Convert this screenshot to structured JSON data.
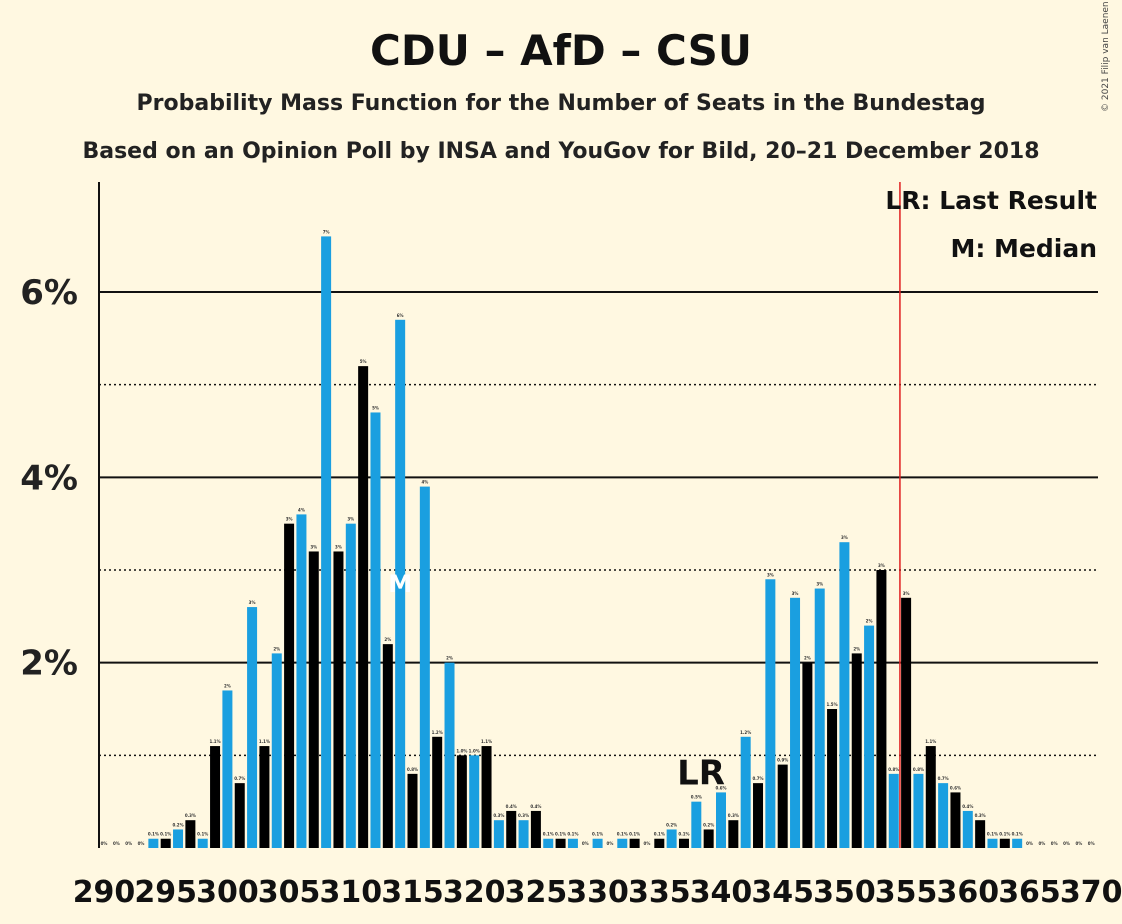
{
  "title": "CDU – AfD – CSU",
  "subtitle": "Probability Mass Function for the Number of Seats in the Bundestag",
  "caption": "Based on an Opinion Poll by INSA and YouGov for Bild, 20–21 December 2018",
  "copyright": "© 2021 Filip van Laenen",
  "legend": {
    "lr": "LR: Last Result",
    "median": "M: Median"
  },
  "markers": {
    "last_result_label": "LR",
    "median_label": "M"
  },
  "colors": {
    "background": "#fff8e1",
    "bar_blue": "#1a9fe0",
    "bar_black": "#000000",
    "majority_line": "#e0201f"
  },
  "chart_data": {
    "type": "bar",
    "x_start": 290,
    "x_end": 370,
    "y_unit": "%",
    "ylim": [
      0,
      7.1
    ],
    "yticks_major": [
      2,
      4,
      6
    ],
    "ytick_labels": [
      "2%",
      "4%",
      "6%"
    ],
    "yticks_dotted": [
      1,
      3,
      5
    ],
    "xtick_labels": [
      "290",
      "295",
      "300",
      "305",
      "310",
      "315",
      "320",
      "325",
      "330",
      "335",
      "340",
      "345",
      "350",
      "355",
      "360",
      "365",
      "370"
    ],
    "majority_line_at": 355,
    "last_result_seat": 340,
    "median_seat": 314,
    "values": [
      0.0,
      0.0,
      0.0,
      0.0,
      0.1,
      0.1,
      0.2,
      0.3,
      0.1,
      1.1,
      1.7,
      0.7,
      2.6,
      1.1,
      2.1,
      3.5,
      3.6,
      3.2,
      6.6,
      3.2,
      3.5,
      5.2,
      4.7,
      2.2,
      5.7,
      0.8,
      3.9,
      1.2,
      2.0,
      1.0,
      1.0,
      1.1,
      0.3,
      0.4,
      0.3,
      0.4,
      0.1,
      0.1,
      0.1,
      0.0,
      0.1,
      0.0,
      0.1,
      0.1,
      0.0,
      0.1,
      0.2,
      0.1,
      0.5,
      0.2,
      0.6,
      0.3,
      1.2,
      0.7,
      2.9,
      0.9,
      2.7,
      2.0,
      2.8,
      1.5,
      3.3,
      2.1,
      2.4,
      3.0,
      0.8,
      2.7,
      0.8,
      1.1,
      0.7,
      0.6,
      0.4,
      0.3,
      0.1,
      0.1,
      0.1,
      0.0,
      0.0,
      0.0,
      0.0,
      0.0,
      0.0
    ],
    "bar_labels": [
      "0%",
      "0%",
      "0%",
      "0%",
      "0.1%",
      "0.1%",
      "0.2%",
      "0.3%",
      "0.1%",
      "1.1%",
      "2%",
      "0.7%",
      "3%",
      "1.1%",
      "2%",
      "3%",
      "4%",
      "3%",
      "7%",
      "3%",
      "3%",
      "5%",
      "5%",
      "2%",
      "6%",
      "0.8%",
      "4%",
      "1.2%",
      "2%",
      "1.0%",
      "1.0%",
      "1.1%",
      "0.3%",
      "0.4%",
      "0.3%",
      "0.4%",
      "0.1%",
      "0.1%",
      "0.1%",
      "0%",
      "0.1%",
      "0%",
      "0.1%",
      "0.1%",
      "0%",
      "0.1%",
      "0.2%",
      "0.1%",
      "0.5%",
      "0.2%",
      "0.6%",
      "0.3%",
      "1.2%",
      "0.7%",
      "3%",
      "0.9%",
      "3%",
      "2%",
      "3%",
      "1.5%",
      "3%",
      "2%",
      "2%",
      "3%",
      "0.8%",
      "3%",
      "0.8%",
      "1.1%",
      "0.7%",
      "0.6%",
      "0.4%",
      "0.3%",
      "0.1%",
      "0.1%",
      "0.1%",
      "0%",
      "0%",
      "0%",
      "0%",
      "0%",
      "0%"
    ]
  }
}
